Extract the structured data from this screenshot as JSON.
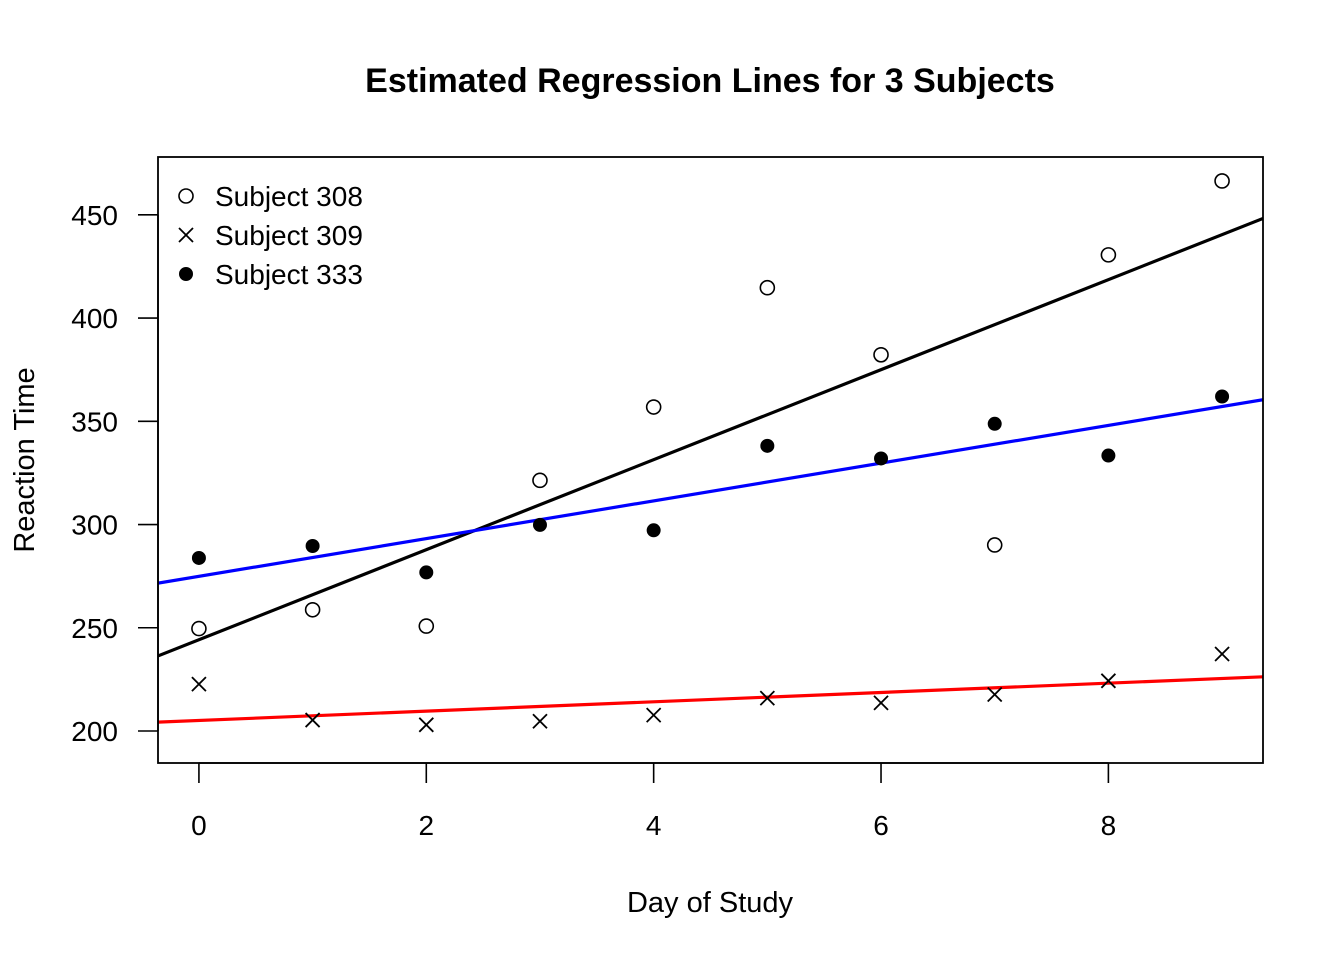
{
  "chart_data": {
    "type": "scatter",
    "title": "Estimated Regression Lines for 3 Subjects",
    "xlabel": "Day of Study",
    "ylabel": "Reaction Time",
    "xlim": [
      -0.36,
      9.36
    ],
    "ylim": [
      184.5,
      478.0
    ],
    "xticks": [
      0,
      2,
      4,
      6,
      8
    ],
    "yticks": [
      200,
      250,
      300,
      350,
      400,
      450
    ],
    "grid": false,
    "legend_position": "top-left",
    "series": [
      {
        "name": "Subject 308",
        "marker": "open-circle",
        "x": [
          0,
          1,
          2,
          3,
          4,
          5,
          6,
          7,
          8,
          9
        ],
        "y": [
          249.6,
          258.7,
          250.8,
          321.4,
          356.9,
          414.7,
          382.2,
          290.1,
          430.6,
          466.4
        ]
      },
      {
        "name": "Subject 309",
        "marker": "cross",
        "x": [
          0,
          1,
          2,
          3,
          4,
          5,
          6,
          7,
          8,
          9
        ],
        "y": [
          222.7,
          205.3,
          203.0,
          204.7,
          207.7,
          215.9,
          213.6,
          217.7,
          224.3,
          237.3
        ]
      },
      {
        "name": "Subject 333",
        "marker": "filled-circle",
        "x": [
          0,
          1,
          2,
          3,
          4,
          5,
          6,
          7,
          8,
          9
        ],
        "y": [
          283.8,
          289.6,
          276.8,
          299.8,
          297.2,
          338.1,
          332.0,
          348.8,
          333.4,
          362.0
        ]
      }
    ],
    "regression_lines": [
      {
        "series": "Subject 308",
        "intercept": 244.2,
        "slope": 21.8,
        "color": "#000000"
      },
      {
        "series": "Subject 309",
        "intercept": 205.1,
        "slope": 2.26,
        "color": "#ff0000"
      },
      {
        "series": "Subject 333",
        "intercept": 274.9,
        "slope": 9.14,
        "color": "#0000ff"
      }
    ]
  }
}
